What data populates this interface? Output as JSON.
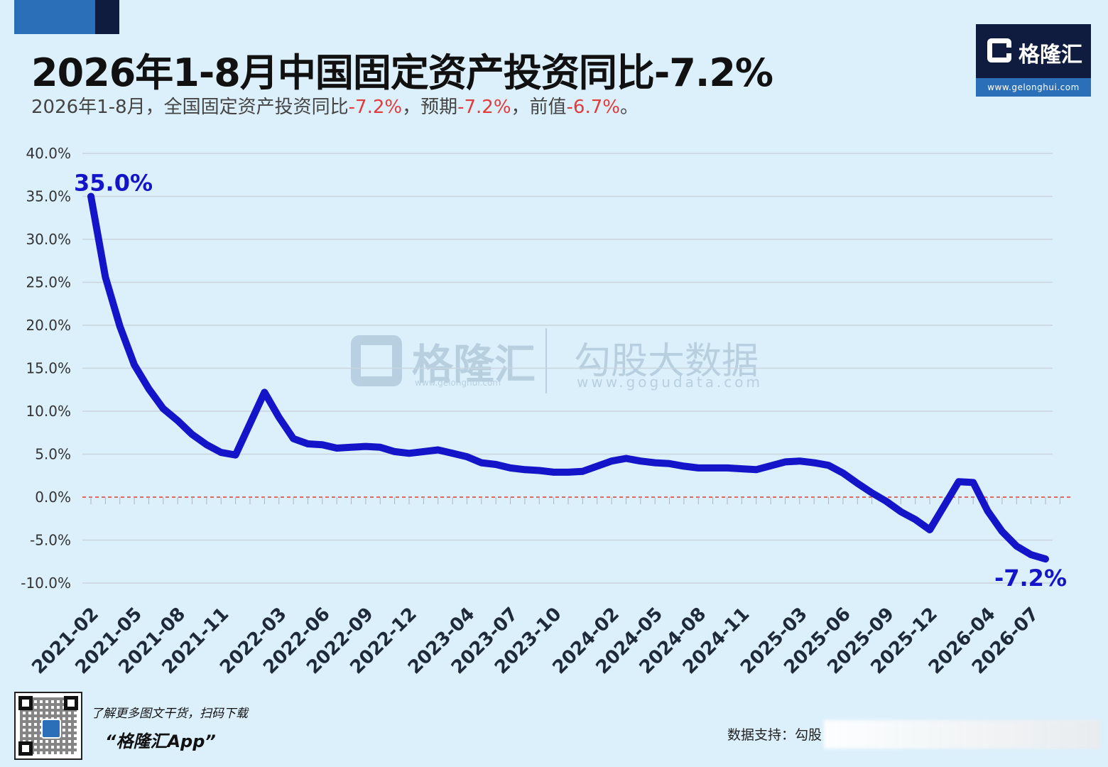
{
  "header": {
    "title": "2026年1-8月中国固定资产投资同比-7.2%",
    "subtitle_prefix": "2026年1-8月，全国固定资产投资同比",
    "subtitle_value1": "-7.2%",
    "subtitle_mid1": "，预期",
    "subtitle_value2": "-7.2%",
    "subtitle_mid2": "，前值",
    "subtitle_value3": "-6.7%",
    "subtitle_suffix": "。"
  },
  "logo": {
    "name": "格隆汇",
    "url": "www.gelonghui.com"
  },
  "watermark": {
    "brand1": "格隆汇",
    "url1": "www.gelonghui.com",
    "brand2": "勾股大数据",
    "url2": "www.gogudata.com"
  },
  "footer": {
    "promo_line": "了解更多图文干货，扫码下载",
    "app_name": "“格隆汇App”",
    "source_label": "数据支持：勾股"
  },
  "colors": {
    "line": "#1414c8",
    "zero_line": "#e23b3b",
    "grid": "#c9d4de",
    "background": "#dcf0fb"
  },
  "chart_data": {
    "type": "line",
    "title": "2026年1-8月中国固定资产投资同比-7.2%",
    "xlabel": "",
    "ylabel": "",
    "ylim": [
      -10,
      40
    ],
    "y_ticks": [
      "40.0%",
      "35.0%",
      "30.0%",
      "25.0%",
      "20.0%",
      "15.0%",
      "10.0%",
      "5.0%",
      "0.0%",
      "-5.0%",
      "-10.0%"
    ],
    "x_tick_labels": [
      "2021-02",
      "2021-05",
      "2021-08",
      "2021-11",
      "2022-03",
      "2022-06",
      "2022-09",
      "2022-12",
      "2023-04",
      "2023-07",
      "2023-10",
      "2024-02",
      "2024-05",
      "2024-08",
      "2024-11",
      "2025-03",
      "2025-06",
      "2025-09",
      "2025-12",
      "2026-04",
      "2026-07"
    ],
    "grid": true,
    "reference_line": 0,
    "annotations": [
      {
        "x": "2021-02",
        "text": "35.0%"
      },
      {
        "x": "2026-08",
        "text": "-7.2%"
      }
    ],
    "series": [
      {
        "x": [
          "2021-02",
          "2021-03",
          "2021-04",
          "2021-05",
          "2021-06",
          "2021-07",
          "2021-08",
          "2021-09",
          "2021-10",
          "2021-11",
          "2021-12",
          "2022-02",
          "2022-03",
          "2022-04",
          "2022-05",
          "2022-06",
          "2022-07",
          "2022-08",
          "2022-09",
          "2022-10",
          "2022-11",
          "2022-12",
          "2023-02",
          "2023-03",
          "2023-04",
          "2023-05",
          "2023-06",
          "2023-07",
          "2023-08",
          "2023-09",
          "2023-10",
          "2023-11",
          "2023-12",
          "2024-02",
          "2024-03",
          "2024-04",
          "2024-05",
          "2024-06",
          "2024-07",
          "2024-08",
          "2024-09",
          "2024-10",
          "2024-11",
          "2024-12",
          "2025-02",
          "2025-03",
          "2025-04",
          "2025-05",
          "2025-06",
          "2025-07",
          "2025-08",
          "2025-09",
          "2025-10",
          "2025-11",
          "2025-12",
          "2026-02",
          "2026-03",
          "2026-04",
          "2026-05",
          "2026-06",
          "2026-07",
          "2026-08"
        ],
        "values": [
          35.0,
          25.6,
          19.9,
          15.4,
          12.6,
          10.3,
          8.9,
          7.3,
          6.1,
          5.2,
          4.9,
          12.2,
          9.3,
          6.8,
          6.2,
          6.1,
          5.7,
          5.8,
          5.9,
          5.8,
          5.3,
          5.1,
          5.5,
          5.1,
          4.7,
          4.0,
          3.8,
          3.4,
          3.2,
          3.1,
          2.9,
          2.9,
          3.0,
          4.2,
          4.5,
          4.2,
          4.0,
          3.9,
          3.6,
          3.4,
          3.4,
          3.4,
          3.3,
          3.2,
          4.1,
          4.2,
          4.0,
          3.7,
          2.8,
          1.6,
          0.5,
          -0.5,
          -1.7,
          -2.6,
          -3.8,
          1.8,
          1.7,
          -1.6,
          -4.0,
          -5.7,
          -6.7,
          -7.2
        ]
      }
    ]
  }
}
